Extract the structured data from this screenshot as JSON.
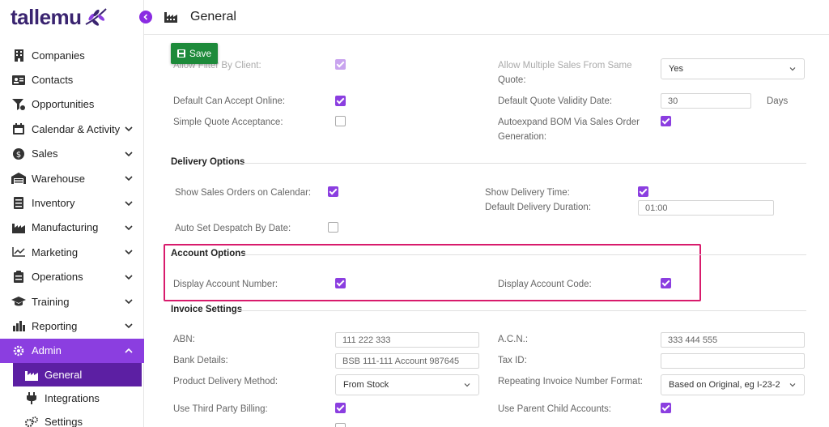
{
  "brand": {
    "logo_text": "tallemu",
    "accent": "#8b3ee0",
    "active_sub": "#5c1fa3"
  },
  "sidebar": {
    "items": [
      {
        "label": "Companies",
        "icon": "building-icon",
        "chevron": false
      },
      {
        "label": "Contacts",
        "icon": "id-card-icon",
        "chevron": false
      },
      {
        "label": "Opportunities",
        "icon": "funnel-icon",
        "chevron": false
      },
      {
        "label": "Calendar & Activity",
        "icon": "calendar-icon",
        "chevron": true
      },
      {
        "label": "Sales",
        "icon": "dollar-icon",
        "chevron": true
      },
      {
        "label": "Warehouse",
        "icon": "warehouse-icon",
        "chevron": true
      },
      {
        "label": "Inventory",
        "icon": "list-icon",
        "chevron": true
      },
      {
        "label": "Manufacturing",
        "icon": "factory-icon",
        "chevron": true
      },
      {
        "label": "Marketing",
        "icon": "chart-line-icon",
        "chevron": true
      },
      {
        "label": "Operations",
        "icon": "clipboard-icon",
        "chevron": true
      },
      {
        "label": "Training",
        "icon": "graduation-cap-icon",
        "chevron": true
      },
      {
        "label": "Reporting",
        "icon": "bar-chart-icon",
        "chevron": true
      },
      {
        "label": "Admin",
        "icon": "cog-icon",
        "chevron": true,
        "active": true
      }
    ],
    "sub_items": [
      {
        "label": "General",
        "icon": "factory-icon",
        "active": true
      },
      {
        "label": "Integrations",
        "icon": "plug-icon"
      },
      {
        "label": "Settings",
        "icon": "cogs-icon"
      }
    ]
  },
  "header": {
    "title": "General"
  },
  "toolbar": {
    "save_label": "Save"
  },
  "general": {
    "allow_filter_by_client": "Allow Filter By Client:",
    "allow_multiple_sales_line1": "Allow Multiple Sales From Same",
    "allow_multiple_sales_line2": "Quote:",
    "allow_multiple_sales_value": "Yes",
    "default_can_accept_online": "Default Can Accept Online:",
    "default_quote_validity": "Default Quote Validity Date:",
    "default_quote_validity_value": "30",
    "days": "Days",
    "simple_quote_acceptance": "Simple Quote Acceptance:",
    "autoexpand_line1": "Autoexpand BOM Via Sales Order",
    "autoexpand_line2": "Generation:"
  },
  "delivery": {
    "heading": "Delivery Options",
    "show_sales_orders": "Show Sales Orders on Calendar:",
    "show_delivery_time": "Show Delivery Time:",
    "default_delivery_duration": "Default Delivery Duration:",
    "default_delivery_duration_value": "01:00",
    "auto_set_despatch": "Auto Set Despatch By Date:"
  },
  "account": {
    "heading": "Account Options",
    "display_account_number": "Display Account Number:",
    "display_account_code": "Display Account Code:"
  },
  "invoice": {
    "heading": "Invoice Settings",
    "abn": "ABN:",
    "abn_value": "111 222 333",
    "acn": "A.C.N.:",
    "acn_value": "333 444 555",
    "bank_details": "Bank Details:",
    "bank_details_value": "BSB 111-111 Account 987645",
    "tax_id": "Tax ID:",
    "tax_id_value": "",
    "product_delivery_method": "Product Delivery Method:",
    "product_delivery_method_value": "From Stock",
    "repeating_invoice_format": "Repeating Invoice Number Format:",
    "repeating_invoice_format_value": "Based on Original, eg I-23-2",
    "use_third_party_billing": "Use Third Party Billing:",
    "use_parent_child_accounts": "Use Parent Child Accounts:"
  },
  "highlight_color": "#d81b6c"
}
